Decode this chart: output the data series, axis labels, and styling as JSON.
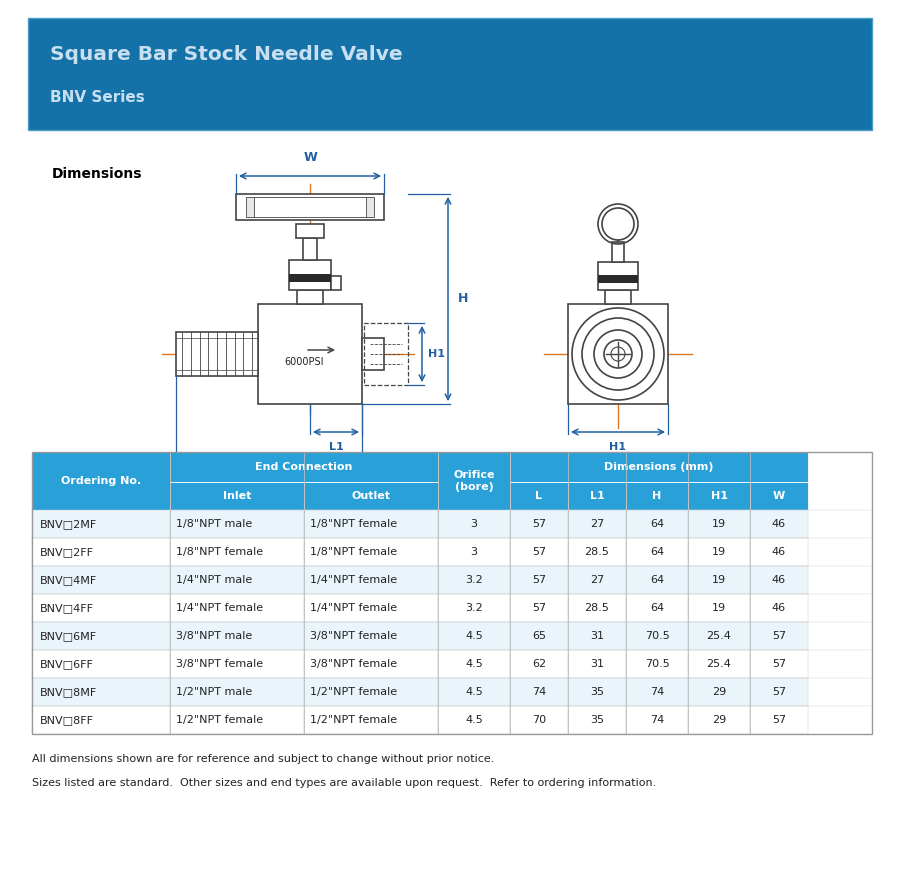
{
  "title": "Square Bar Stock Needle Valve",
  "subtitle": "BNV Series",
  "header_bg": "#1572a8",
  "header_border": "#4a9dc9",
  "header_text_color": "#c8dff0",
  "dimensions_label": "Dimensions",
  "pressure_label": "6000PSI",
  "dim_line_color": "#2060a0",
  "orange_line_color": "#e07820",
  "table_header_bg": "#29a0d8",
  "table_header_text": "#ffffff",
  "table_alt_row_bg": "#eaf4fb",
  "table_row_bg": "#ffffff",
  "rows": [
    [
      "BNV□2MF",
      "1/8\"NPT male",
      "1/8\"NPT female",
      "3",
      "57",
      "27",
      "64",
      "19",
      "46"
    ],
    [
      "BNV□2FF",
      "1/8\"NPT female",
      "1/8\"NPT female",
      "3",
      "57",
      "28.5",
      "64",
      "19",
      "46"
    ],
    [
      "BNV□4MF",
      "1/4\"NPT male",
      "1/4\"NPT female",
      "3.2",
      "57",
      "27",
      "64",
      "19",
      "46"
    ],
    [
      "BNV□4FF",
      "1/4\"NPT female",
      "1/4\"NPT female",
      "3.2",
      "57",
      "28.5",
      "64",
      "19",
      "46"
    ],
    [
      "BNV□6MF",
      "3/8\"NPT male",
      "3/8\"NPT female",
      "4.5",
      "65",
      "31",
      "70.5",
      "25.4",
      "57"
    ],
    [
      "BNV□6FF",
      "3/8\"NPT female",
      "3/8\"NPT female",
      "4.5",
      "62",
      "31",
      "70.5",
      "25.4",
      "57"
    ],
    [
      "BNV□8MF",
      "1/2\"NPT male",
      "1/2\"NPT female",
      "4.5",
      "74",
      "35",
      "74",
      "29",
      "57"
    ],
    [
      "BNV□8FF",
      "1/2\"NPT female",
      "1/2\"NPT female",
      "4.5",
      "70",
      "35",
      "74",
      "29",
      "57"
    ]
  ],
  "footnote1": "All dimensions shown are for reference and subject to change without prior notice.",
  "footnote2": "Sizes listed are standard.  Other sizes and end types are available upon request.  Refer to ordering information."
}
